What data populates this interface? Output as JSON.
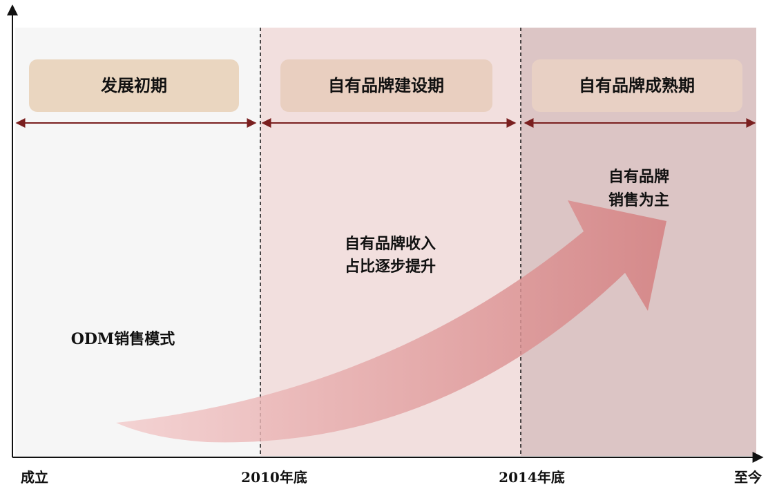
{
  "phases": [
    "发展初期",
    "自有品牌建设期",
    "自有品牌成熟期"
  ],
  "notes": [
    [
      "ODM销售模式"
    ],
    [
      "自有品牌收入",
      "占比逐步提升"
    ],
    [
      "自有品牌",
      "销售为主"
    ]
  ],
  "timeline": [
    "成立",
    "2010年底",
    "2014年底",
    "至今"
  ]
}
